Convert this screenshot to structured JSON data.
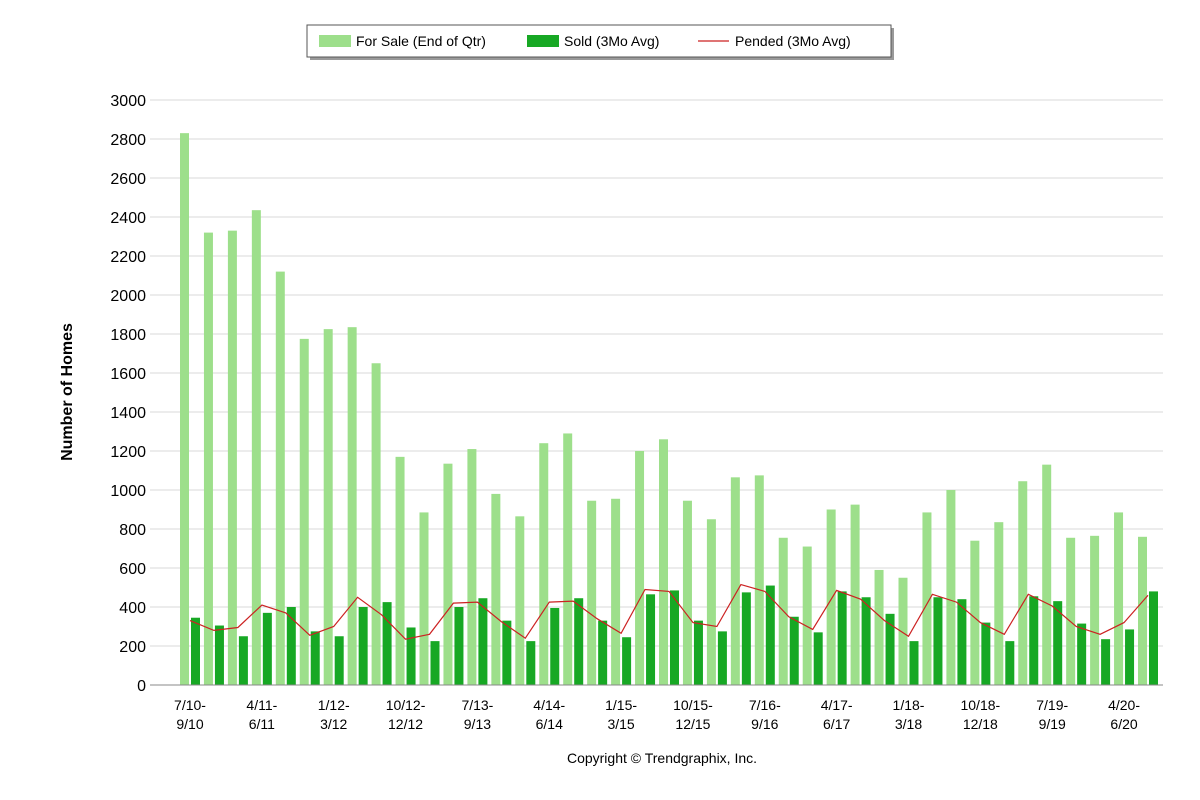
{
  "chart_data": {
    "type": "bar",
    "title": "",
    "ylabel": "Number of Homes",
    "xlabel": "",
    "ylim": [
      0,
      3000
    ],
    "yticks": [
      0,
      200,
      400,
      600,
      800,
      1000,
      1200,
      1400,
      1600,
      1800,
      2000,
      2200,
      2400,
      2600,
      2800,
      3000
    ],
    "grid": true,
    "legend_position": "top-center",
    "x_tick_labels": [
      {
        "index": 0,
        "line1": "7/10-",
        "line2": "9/10"
      },
      {
        "index": 3,
        "line1": "4/11-",
        "line2": "6/11"
      },
      {
        "index": 6,
        "line1": "1/12-",
        "line2": "3/12"
      },
      {
        "index": 9,
        "line1": "10/12-",
        "line2": "12/12"
      },
      {
        "index": 12,
        "line1": "7/13-",
        "line2": "9/13"
      },
      {
        "index": 15,
        "line1": "4/14-",
        "line2": "6/14"
      },
      {
        "index": 18,
        "line1": "1/15-",
        "line2": "3/15"
      },
      {
        "index": 21,
        "line1": "10/15-",
        "line2": "12/15"
      },
      {
        "index": 24,
        "line1": "7/16-",
        "line2": "9/16"
      },
      {
        "index": 27,
        "line1": "4/17-",
        "line2": "6/17"
      },
      {
        "index": 30,
        "line1": "1/18-",
        "line2": "3/18"
      },
      {
        "index": 33,
        "line1": "10/18-",
        "line2": "12/18"
      },
      {
        "index": 36,
        "line1": "7/19-",
        "line2": "9/19"
      },
      {
        "index": 39,
        "line1": "4/20-",
        "line2": "6/20"
      }
    ],
    "series": [
      {
        "name": "For Sale (End of Qtr)",
        "kind": "bar",
        "color": "#9ddf8b",
        "values": [
          2830,
          2320,
          2330,
          2435,
          2120,
          1775,
          1825,
          1835,
          1650,
          1170,
          885,
          1135,
          1210,
          980,
          865,
          1240,
          1290,
          945,
          955,
          1200,
          1260,
          945,
          850,
          1065,
          1075,
          755,
          710,
          900,
          925,
          590,
          550,
          885,
          1000,
          740,
          835,
          1045,
          1130,
          755,
          765,
          885,
          760
        ]
      },
      {
        "name": "Sold (3Mo Avg)",
        "kind": "bar",
        "color": "#17a824",
        "values": [
          345,
          305,
          250,
          370,
          400,
          275,
          250,
          400,
          425,
          295,
          225,
          400,
          445,
          330,
          225,
          395,
          445,
          330,
          245,
          465,
          485,
          330,
          275,
          475,
          510,
          350,
          270,
          480,
          450,
          365,
          225,
          450,
          440,
          320,
          225,
          455,
          430,
          315,
          235,
          285,
          480
        ]
      },
      {
        "name": "Pended (3Mo Avg)",
        "kind": "line",
        "color": "#cc2222",
        "values": [
          330,
          280,
          295,
          410,
          370,
          255,
          300,
          450,
          360,
          235,
          260,
          420,
          425,
          325,
          240,
          425,
          430,
          340,
          265,
          490,
          480,
          320,
          300,
          515,
          480,
          350,
          285,
          485,
          440,
          330,
          250,
          465,
          425,
          320,
          260,
          465,
          405,
          300,
          260,
          320,
          460
        ]
      }
    ]
  },
  "footer": {
    "copyright": "Copyright © Trendgraphix, Inc."
  }
}
